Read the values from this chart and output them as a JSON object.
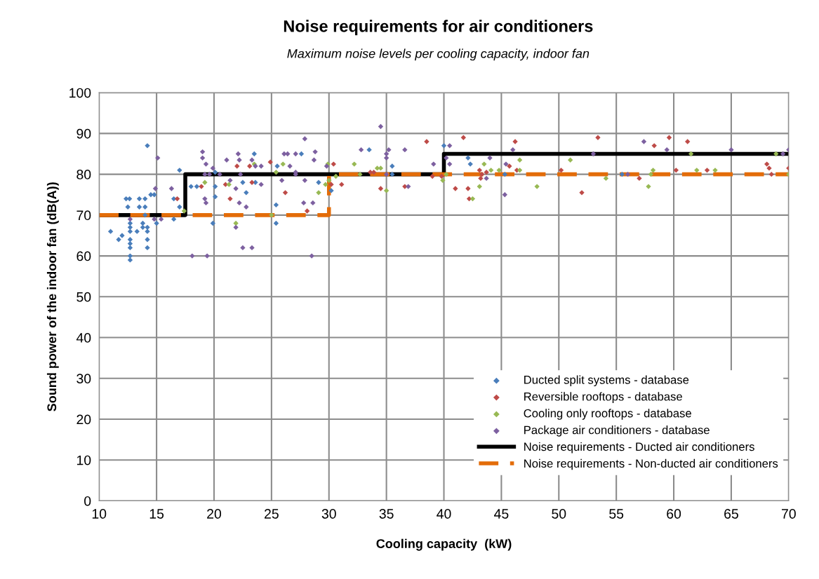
{
  "chart_data": {
    "type": "scatter",
    "title": "Noise requirements for air conditioners",
    "subtitle": "Maximum noise levels per cooling capacity, indoor fan",
    "xlabel": "Cooling capacity  (kW)",
    "ylabel": "Sound power of the indoor fan (dB(A))",
    "xlim": [
      10,
      70
    ],
    "xticks": [
      10,
      15,
      20,
      25,
      30,
      35,
      40,
      45,
      50,
      55,
      60,
      65,
      70
    ],
    "ylim": [
      0,
      100
    ],
    "yticks": [
      0,
      10,
      20,
      30,
      40,
      50,
      60,
      70,
      80,
      90,
      100
    ],
    "grid": true,
    "legend": "bottom right",
    "marker": "diamond",
    "series": [
      {
        "name": "Ducted split systems - database",
        "color": "#4a7ebb",
        "x": [
          11,
          11.7,
          12,
          12.5,
          12.35,
          12.65,
          12.7,
          12.7,
          12.7,
          12.7,
          12.7,
          12.7,
          12.7,
          12.7,
          13.3,
          13.5,
          13.5,
          13.8,
          13.8,
          14,
          14.2,
          14,
          14,
          14.2,
          14.2,
          14.2,
          14.2,
          14.5,
          14.8,
          15,
          16.5,
          16.5,
          17,
          17,
          18,
          18.5,
          20.1,
          20.1,
          20.1,
          19.9,
          22.5,
          22.8,
          23.5,
          23.6,
          25.5,
          25.4,
          25.4,
          27.6,
          29.1,
          30.2,
          33.5,
          35.5,
          35.5,
          40,
          42.1,
          42.3,
          45.3,
          55.5
        ],
        "values": [
          66,
          64,
          65,
          72,
          74,
          74,
          68,
          67,
          66,
          64,
          63,
          62,
          60,
          59,
          66,
          72,
          74,
          68,
          67,
          70,
          87,
          72,
          74,
          67,
          66,
          64,
          62,
          75,
          75,
          68,
          74,
          69,
          72,
          81,
          77,
          77,
          80.5,
          77,
          74.5,
          68,
          78,
          75.5,
          85,
          78,
          82,
          72.5,
          68,
          85,
          78,
          76,
          86,
          82,
          80,
          87,
          84,
          82.5,
          80,
          80
        ]
      },
      {
        "name": "Reversible rooftops - database",
        "color": "#be4b48",
        "x": [
          16.8,
          18.9,
          22,
          23.1,
          24.9,
          23.3,
          21,
          21.4,
          26.2,
          28.1,
          30.2,
          30.4,
          31.1,
          33.6,
          33.9,
          34.5,
          36.6,
          38.5,
          39,
          39.8,
          41,
          41.7,
          42.1,
          42.2,
          43.1,
          43.3,
          43.7,
          43.2,
          45.7,
          46.2,
          46.35,
          50.2,
          52,
          53.4,
          57,
          58.3,
          59.6,
          61.2,
          60.2,
          62.9,
          68.1,
          68.3,
          68.5,
          70
        ],
        "values": [
          74,
          77,
          82,
          82,
          83,
          78,
          77.5,
          74,
          75.5,
          71,
          77.5,
          82.5,
          77.5,
          80.5,
          80.5,
          76.5,
          77,
          88,
          79.5,
          79.5,
          76.5,
          89,
          76.5,
          74,
          81,
          80,
          80.5,
          79,
          82,
          88,
          81,
          81,
          75.5,
          89,
          79,
          87,
          89,
          88,
          81,
          81,
          82.5,
          81.5,
          80,
          81.5
        ]
      },
      {
        "name": "Cooling only rooftops - database",
        "color": "#98b954",
        "x": [
          17.4,
          19.2,
          23.5,
          21.3,
          26,
          25.4,
          29.9,
          30,
          30.6,
          29.7,
          29.1,
          21.9,
          25,
          32.2,
          34.2,
          34.5,
          32.7,
          35,
          40.2,
          39.9,
          43.1,
          42.5,
          43.5,
          44.1,
          44.8,
          46.6,
          46.6,
          48.1,
          51,
          54.1,
          58.2,
          58,
          57.8,
          61.5,
          62,
          63.6,
          68.9,
          70
        ],
        "values": [
          71,
          78,
          82.5,
          77.5,
          82.5,
          80.5,
          82.5,
          78.5,
          79.5,
          77.5,
          75.5,
          68,
          70,
          82.5,
          81.5,
          81.5,
          80,
          76,
          80,
          78.5,
          77,
          74,
          82.5,
          81,
          81,
          83.5,
          81,
          77,
          83.5,
          79,
          81,
          80,
          77,
          85,
          81,
          81,
          85,
          80
        ]
      },
      {
        "name": "Package air conditioners - database",
        "color": "#7d60a0",
        "x": [
          15.1,
          14.9,
          16.3,
          12.7,
          14.8,
          15.4,
          19,
          19,
          19.3,
          19.9,
          19.2,
          19.6,
          19.2,
          19.3,
          18.1,
          19.4,
          21.1,
          22.1,
          22.2,
          23.3,
          23.6,
          24.1,
          20.5,
          22.3,
          21.4,
          21.9,
          24.1,
          22.2,
          22.8,
          21.9,
          22.5,
          23.3,
          28.5,
          26.1,
          26.4,
          27.1,
          27.9,
          28.8,
          28.7,
          26.6,
          27.1,
          27.1,
          25.9,
          27.9,
          29.8,
          27.8,
          28.6,
          34.5,
          32.8,
          35.2,
          35,
          35,
          36.6,
          39.1,
          35,
          36.9,
          40.5,
          40.2,
          40.5,
          44,
          43.7,
          45.4,
          46,
          45.3,
          53,
          56,
          57.4,
          59.4,
          65,
          69.5,
          70
        ],
        "values": [
          84,
          76.5,
          76.5,
          69,
          69,
          69,
          85.5,
          84,
          82.5,
          81.5,
          80,
          80,
          74,
          73,
          60,
          60,
          83.5,
          85,
          83.5,
          83.5,
          82,
          82,
          80,
          80,
          78.5,
          76.5,
          77.5,
          73,
          72,
          67,
          62,
          62,
          60,
          85,
          85,
          85,
          88.7,
          85.5,
          83.5,
          82,
          80.5,
          80,
          78.5,
          78.5,
          82,
          73,
          73,
          91.7,
          86,
          86,
          85,
          84,
          86,
          82.5,
          80,
          77,
          87,
          84,
          82.5,
          84,
          79,
          82.5,
          86,
          75,
          85,
          80,
          88,
          86,
          86,
          85,
          86
        ]
      },
      {
        "name": "Noise requirements - Ducted air conditioners",
        "type": "step",
        "color": "#000000",
        "line_style": "solid",
        "marker": "none",
        "x": [
          10,
          17.5,
          40,
          70
        ],
        "values": [
          70,
          80,
          85,
          85
        ]
      },
      {
        "name": "Noise requirements - Non-ducted air conditioners",
        "type": "step",
        "color": "#e36c09",
        "line_style": "dashed",
        "marker": "none",
        "x": [
          10,
          30,
          70
        ],
        "values": [
          70,
          80,
          80
        ]
      }
    ]
  }
}
